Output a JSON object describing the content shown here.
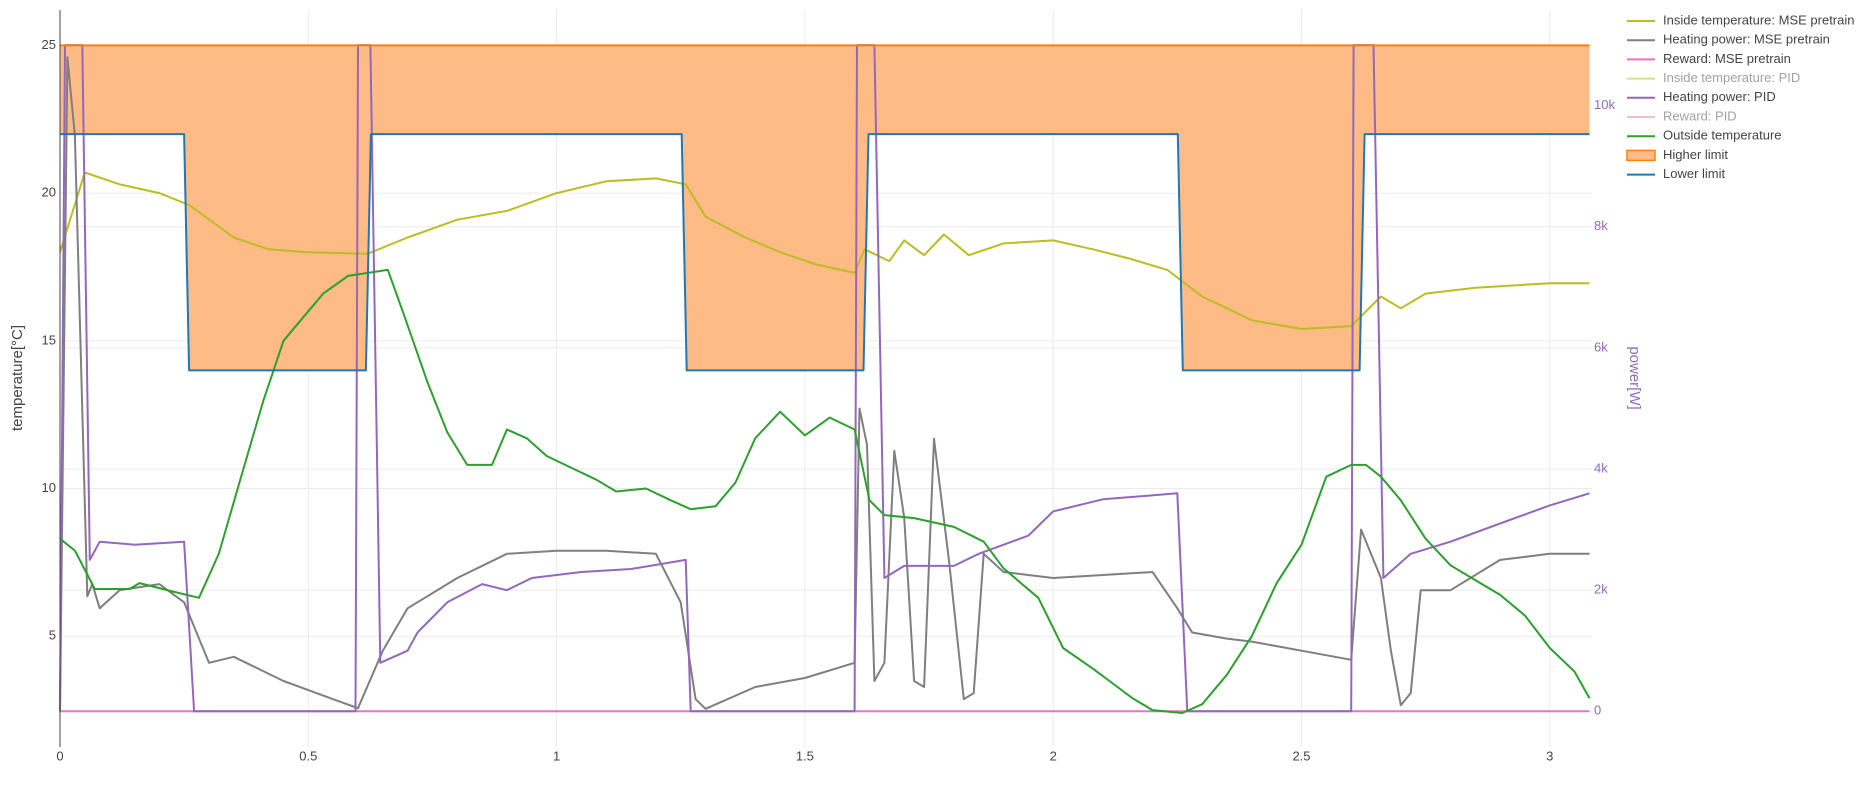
{
  "chart_data": {
    "type": "line",
    "xlim": [
      0,
      3.085
    ],
    "xticks": [
      0,
      0.5,
      1,
      1.5,
      2,
      2.5,
      3
    ],
    "ylim": [
      1.25,
      26.2
    ],
    "yticks": [
      5,
      10,
      15,
      20,
      25
    ],
    "y2lim": [
      -590,
      11580
    ],
    "y2ticks": [
      {
        "value": 0,
        "label": "0"
      },
      {
        "value": 2000,
        "label": "2k"
      },
      {
        "value": 4000,
        "label": "4k"
      },
      {
        "value": 6000,
        "label": "6k"
      },
      {
        "value": 8000,
        "label": "8k"
      },
      {
        "value": 10000,
        "label": "10k"
      }
    ],
    "y_label": "temperature[°C]",
    "y2_label": "power[W]",
    "y2_color": "#9467bd",
    "grid": true,
    "legend": "top-right",
    "series": [
      {
        "name": "Inside temperature: MSE pretrain",
        "color": "#bcbd22",
        "axis": "y",
        "x": [
          0,
          0.05,
          0.12,
          0.2,
          0.26,
          0.35,
          0.42,
          0.5,
          0.62,
          0.7,
          0.8,
          0.9,
          1.0,
          1.1,
          1.2,
          1.26,
          1.3,
          1.38,
          1.45,
          1.52,
          1.6,
          1.62,
          1.67,
          1.7,
          1.74,
          1.78,
          1.83,
          1.9,
          2.0,
          2.08,
          2.15,
          2.23,
          2.3,
          2.4,
          2.5,
          2.6,
          2.66,
          2.7,
          2.75,
          2.85,
          3.0,
          3.08
        ],
        "values": [
          18,
          20.7,
          20.3,
          20,
          19.6,
          18.5,
          18.1,
          18,
          17.95,
          18.5,
          19.1,
          19.4,
          20,
          20.4,
          20.5,
          20.3,
          19.2,
          18.5,
          18,
          17.6,
          17.3,
          18.1,
          17.7,
          18.4,
          17.9,
          18.6,
          17.9,
          18.3,
          18.4,
          18.1,
          17.8,
          17.4,
          16.5,
          15.7,
          15.4,
          15.5,
          16.5,
          16.1,
          16.6,
          16.8,
          16.95,
          16.95
        ]
      },
      {
        "name": "Heating power: MSE pretrain",
        "color": "#7f7f7f",
        "axis": "y2",
        "x": [
          0,
          0.015,
          0.03,
          0.055,
          0.065,
          0.08,
          0.12,
          0.2,
          0.25,
          0.3,
          0.35,
          0.4,
          0.45,
          0.5,
          0.55,
          0.6,
          0.65,
          0.7,
          0.8,
          0.9,
          1.0,
          1.1,
          1.2,
          1.25,
          1.28,
          1.3,
          1.4,
          1.5,
          1.6,
          1.61,
          1.625,
          1.64,
          1.66,
          1.68,
          1.7,
          1.72,
          1.74,
          1.76,
          1.79,
          1.82,
          1.84,
          1.86,
          1.9,
          2.0,
          2.1,
          2.2,
          2.25,
          2.28,
          2.35,
          2.4,
          2.5,
          2.6,
          2.62,
          2.66,
          2.68,
          2.7,
          2.72,
          2.74,
          2.8,
          2.9,
          3.0,
          3.08
        ],
        "values": [
          0,
          10800,
          9500,
          1900,
          2100,
          1700,
          2000,
          2100,
          1800,
          800,
          900,
          700,
          500,
          350,
          200,
          50,
          1000,
          1700,
          2200,
          2600,
          2650,
          2650,
          2600,
          1800,
          200,
          40,
          400,
          550,
          800,
          5000,
          4400,
          500,
          800,
          4300,
          3200,
          500,
          400,
          4500,
          2500,
          200,
          300,
          2600,
          2300,
          2200,
          2250,
          2300,
          1700,
          1300,
          1200,
          1150,
          1000,
          850,
          3000,
          2200,
          1000,
          100,
          300,
          2000,
          2000,
          2500,
          2600,
          2600
        ]
      },
      {
        "name": "Reward: MSE pretrain",
        "color": "#e377c2",
        "axis": "y2",
        "x": [
          0,
          3.08
        ],
        "values": [
          0,
          0
        ]
      },
      {
        "name": "Inside temperature: PID",
        "color": "#bcbd22",
        "axis": "y",
        "visible": false
      },
      {
        "name": "Heating power: PID",
        "color": "#9467bd",
        "axis": "y2",
        "x": [
          0,
          0.01,
          0.045,
          0.06,
          0.08,
          0.15,
          0.25,
          0.27,
          0.595,
          0.6,
          0.625,
          0.645,
          0.7,
          0.72,
          0.78,
          0.85,
          0.9,
          0.95,
          1.05,
          1.15,
          1.26,
          1.27,
          1.6,
          1.605,
          1.64,
          1.66,
          1.7,
          1.8,
          1.85,
          1.95,
          2.0,
          2.1,
          2.25,
          2.27,
          2.6,
          2.605,
          2.645,
          2.665,
          2.72,
          2.8,
          2.9,
          3.0,
          3.08
        ],
        "values": [
          0,
          11000,
          11000,
          2500,
          2800,
          2750,
          2800,
          0,
          0,
          11000,
          11000,
          800,
          1000,
          1300,
          1800,
          2100,
          2000,
          2200,
          2300,
          2350,
          2500,
          0,
          0,
          11000,
          11000,
          2200,
          2400,
          2400,
          2600,
          2900,
          3300,
          3500,
          3600,
          0,
          0,
          11000,
          11000,
          2200,
          2600,
          2800,
          3100,
          3400,
          3600
        ]
      },
      {
        "name": "Reward: PID",
        "color": "#e377c2",
        "axis": "y2",
        "visible": false
      },
      {
        "name": "Outside temperature",
        "color": "#2ca02c",
        "axis": "y",
        "x": [
          0,
          0.03,
          0.07,
          0.14,
          0.16,
          0.23,
          0.28,
          0.32,
          0.37,
          0.41,
          0.45,
          0.49,
          0.53,
          0.58,
          0.62,
          0.66,
          0.69,
          0.74,
          0.78,
          0.82,
          0.87,
          0.9,
          0.94,
          0.98,
          1.03,
          1.08,
          1.12,
          1.18,
          1.23,
          1.27,
          1.32,
          1.36,
          1.4,
          1.45,
          1.5,
          1.55,
          1.6,
          1.63,
          1.66,
          1.72,
          1.8,
          1.86,
          1.9,
          1.97,
          2.02,
          2.08,
          2.12,
          2.16,
          2.2,
          2.26,
          2.3,
          2.35,
          2.4,
          2.45,
          2.5,
          2.55,
          2.6,
          2.63,
          2.66,
          2.7,
          2.75,
          2.8,
          2.85,
          2.9,
          2.95,
          3.0,
          3.05,
          3.08
        ],
        "values": [
          8.3,
          7.9,
          6.6,
          6.6,
          6.8,
          6.5,
          6.3,
          7.8,
          10.7,
          13,
          15,
          15.8,
          16.6,
          17.2,
          17.3,
          17.4,
          16,
          13.6,
          11.9,
          10.8,
          10.8,
          12,
          11.7,
          11.1,
          10.7,
          10.3,
          9.9,
          10,
          9.6,
          9.3,
          9.4,
          10.2,
          11.7,
          12.6,
          11.8,
          12.4,
          12,
          9.6,
          9.1,
          9,
          8.7,
          8.2,
          7.3,
          6.3,
          4.6,
          3.9,
          3.4,
          2.9,
          2.5,
          2.4,
          2.7,
          3.7,
          5,
          6.8,
          8.1,
          10.4,
          10.8,
          10.8,
          10.4,
          9.6,
          8.3,
          7.4,
          6.9,
          6.4,
          5.7,
          4.6,
          3.8,
          2.9
        ]
      },
      {
        "name": "Higher limit",
        "color": "#ff7f0e",
        "axis": "y",
        "fill": "tonext",
        "fillcolor": "#ffbb85",
        "x": [
          0,
          3.08
        ],
        "values": [
          25,
          25
        ]
      },
      {
        "name": "Lower limit",
        "color": "#1f77b4",
        "axis": "y",
        "x": [
          0,
          0.25,
          0.26,
          0.616,
          0.626,
          1.252,
          1.262,
          1.618,
          1.628,
          2.251,
          2.261,
          2.617,
          2.627,
          3.08
        ],
        "values": [
          22,
          22,
          14,
          14,
          22,
          22,
          14,
          14,
          22,
          22,
          14,
          14,
          22,
          22
        ]
      }
    ]
  }
}
